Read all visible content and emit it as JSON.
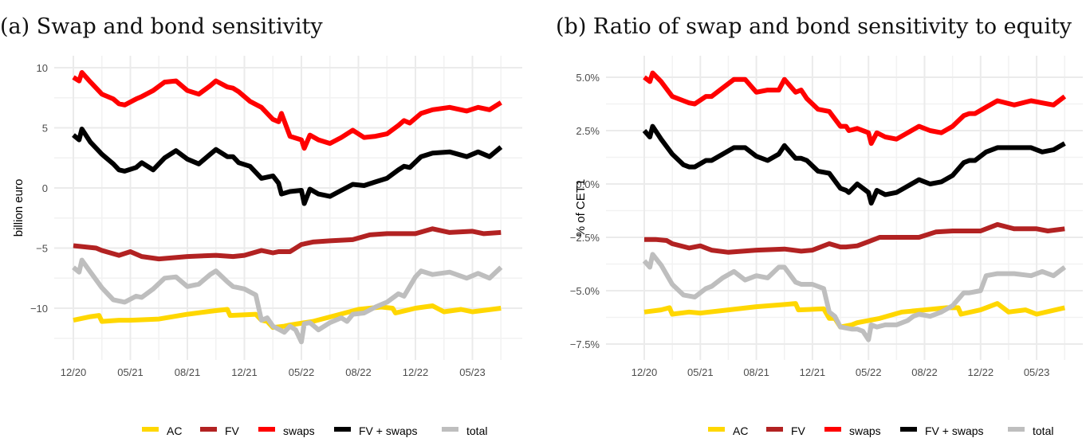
{
  "chart_data": [
    {
      "type": "line",
      "title": "(a) Swap and bond sensitivity",
      "xlabel": "",
      "ylabel": "billion euro",
      "x_tick_labels": [
        "12/20",
        "05/21",
        "08/21",
        "12/21",
        "05/22",
        "08/22",
        "12/22",
        "05/23"
      ],
      "y_ticks": [
        10,
        5,
        0,
        -5,
        -10
      ],
      "y_tick_labels": [
        "10",
        "5",
        "0",
        "−5",
        "−10"
      ],
      "ylim": [
        -12.8,
        10.5
      ],
      "xlim_ticks": [
        0,
        7.5
      ],
      "grid": true,
      "legend_position": "bottom",
      "series": [
        {
          "name": "AC",
          "color": "#FFD700",
          "x": [
            0,
            0.3,
            0.45,
            0.5,
            0.8,
            1.0,
            1.5,
            2.0,
            2.5,
            2.7,
            2.75,
            3.2,
            3.3,
            3.4,
            3.5,
            3.7,
            3.8,
            4.2,
            4.6,
            5.0,
            5.4,
            5.6,
            5.65,
            6.0,
            6.3,
            6.5,
            6.8,
            7.0,
            7.5
          ],
          "values": [
            -11.0,
            -10.7,
            -10.6,
            -11.1,
            -11.0,
            -11.0,
            -10.9,
            -10.5,
            -10.2,
            -10.1,
            -10.6,
            -10.5,
            -11.0,
            -11.1,
            -11.6,
            -11.5,
            -11.4,
            -11.1,
            -10.6,
            -10.1,
            -9.9,
            -10.0,
            -10.4,
            -10.0,
            -9.8,
            -10.3,
            -10.1,
            -10.3,
            -10.0
          ]
        },
        {
          "name": "FV",
          "color": "#B22222",
          "x": [
            0,
            0.2,
            0.4,
            0.5,
            0.8,
            1.0,
            1.2,
            1.5,
            2.0,
            2.5,
            2.8,
            3.0,
            3.3,
            3.5,
            3.6,
            3.8,
            4.0,
            4.2,
            4.5,
            4.9,
            5.2,
            5.5,
            6.0,
            6.3,
            6.6,
            7.0,
            7.2,
            7.5
          ],
          "values": [
            -4.8,
            -4.9,
            -5.0,
            -5.2,
            -5.6,
            -5.3,
            -5.7,
            -5.9,
            -5.7,
            -5.6,
            -5.7,
            -5.6,
            -5.2,
            -5.4,
            -5.3,
            -5.3,
            -4.7,
            -4.5,
            -4.4,
            -4.3,
            -3.9,
            -3.8,
            -3.8,
            -3.4,
            -3.7,
            -3.6,
            -3.8,
            -3.7
          ]
        },
        {
          "name": "swaps",
          "color": "#FF0000",
          "x": [
            0,
            0.1,
            0.15,
            0.3,
            0.5,
            0.7,
            0.8,
            0.9,
            1.1,
            1.2,
            1.4,
            1.6,
            1.8,
            2.0,
            2.2,
            2.4,
            2.5,
            2.7,
            2.8,
            2.9,
            3.1,
            3.3,
            3.5,
            3.6,
            3.65,
            3.8,
            4.0,
            4.05,
            4.15,
            4.3,
            4.5,
            4.7,
            4.9,
            5.1,
            5.3,
            5.5,
            5.7,
            5.8,
            5.9,
            6.1,
            6.3,
            6.6,
            6.9,
            7.1,
            7.3,
            7.5
          ],
          "values": [
            9.2,
            8.9,
            9.6,
            8.8,
            7.8,
            7.4,
            7.0,
            6.9,
            7.4,
            7.6,
            8.1,
            8.8,
            8.9,
            8.1,
            7.8,
            8.5,
            8.9,
            8.4,
            8.3,
            8.0,
            7.2,
            6.7,
            5.7,
            5.5,
            6.2,
            4.3,
            4.0,
            3.3,
            4.4,
            4.0,
            3.7,
            4.2,
            4.8,
            4.2,
            4.3,
            4.5,
            5.2,
            5.6,
            5.4,
            6.2,
            6.5,
            6.7,
            6.4,
            6.7,
            6.5,
            7.1
          ]
        },
        {
          "name": "FV + swaps",
          "color": "#000000",
          "x": [
            0,
            0.1,
            0.15,
            0.3,
            0.5,
            0.7,
            0.8,
            0.9,
            1.1,
            1.2,
            1.4,
            1.6,
            1.8,
            2.0,
            2.2,
            2.4,
            2.5,
            2.7,
            2.8,
            2.9,
            3.1,
            3.3,
            3.5,
            3.6,
            3.65,
            3.8,
            4.0,
            4.05,
            4.15,
            4.3,
            4.5,
            4.7,
            4.9,
            5.1,
            5.3,
            5.5,
            5.7,
            5.8,
            5.9,
            6.1,
            6.3,
            6.6,
            6.9,
            7.1,
            7.3,
            7.5
          ],
          "values": [
            4.4,
            4.0,
            4.9,
            3.8,
            2.8,
            2.0,
            1.5,
            1.4,
            1.7,
            2.1,
            1.5,
            2.5,
            3.1,
            2.4,
            2.0,
            2.8,
            3.2,
            2.6,
            2.6,
            2.1,
            1.8,
            0.8,
            1.0,
            0.4,
            -0.5,
            -0.3,
            -0.2,
            -1.3,
            -0.1,
            -0.5,
            -0.7,
            -0.2,
            0.3,
            0.2,
            0.5,
            0.8,
            1.5,
            1.8,
            1.7,
            2.6,
            2.9,
            3.0,
            2.6,
            3.0,
            2.6,
            3.4
          ]
        },
        {
          "name": "total",
          "color": "#BEBEBE",
          "x": [
            0,
            0.1,
            0.15,
            0.3,
            0.5,
            0.7,
            0.8,
            0.9,
            1.1,
            1.2,
            1.4,
            1.6,
            1.8,
            2.0,
            2.2,
            2.4,
            2.5,
            2.7,
            2.8,
            3.0,
            3.2,
            3.3,
            3.4,
            3.5,
            3.7,
            3.8,
            3.9,
            4.0,
            4.05,
            4.15,
            4.3,
            4.5,
            4.7,
            4.8,
            4.9,
            5.1,
            5.3,
            5.5,
            5.7,
            5.8,
            6.0,
            6.1,
            6.3,
            6.6,
            6.9,
            7.1,
            7.3,
            7.5
          ],
          "values": [
            -6.6,
            -7.0,
            -6.0,
            -7.0,
            -8.3,
            -9.3,
            -9.4,
            -9.5,
            -9.0,
            -9.1,
            -8.4,
            -7.5,
            -7.4,
            -8.2,
            -8.0,
            -7.2,
            -6.9,
            -7.8,
            -8.2,
            -8.4,
            -8.9,
            -11.0,
            -10.8,
            -11.5,
            -12.0,
            -11.5,
            -11.8,
            -12.8,
            -11.3,
            -11.2,
            -11.8,
            -11.2,
            -10.8,
            -11.1,
            -10.5,
            -10.4,
            -9.9,
            -9.5,
            -8.8,
            -9.0,
            -7.4,
            -6.9,
            -7.2,
            -7.0,
            -7.5,
            -7.1,
            -7.5,
            -6.6
          ]
        }
      ]
    },
    {
      "type": "line",
      "title": "(b) Ratio of swap and bond sensitivity to equity",
      "xlabel": "",
      "ylabel": "% of CET1",
      "x_tick_labels": [
        "12/20",
        "05/21",
        "08/21",
        "12/21",
        "05/22",
        "08/22",
        "12/22",
        "05/23"
      ],
      "y_ticks": [
        5.0,
        2.5,
        0.0,
        -2.5,
        -5.0,
        -7.5
      ],
      "y_tick_labels": [
        "5.0%",
        "2.5%",
        "0.0%",
        "−2.5%",
        "−5.0%",
        "−7.5%"
      ],
      "ylim": [
        -7.6,
        5.5
      ],
      "xlim_ticks": [
        0,
        7.5
      ],
      "grid": true,
      "legend_position": "bottom",
      "series": [
        {
          "name": "AC",
          "color": "#FFD700",
          "x": [
            0,
            0.3,
            0.45,
            0.5,
            0.8,
            1.0,
            1.5,
            2.0,
            2.5,
            2.7,
            2.75,
            3.2,
            3.3,
            3.4,
            3.5,
            3.7,
            3.8,
            4.2,
            4.6,
            5.0,
            5.4,
            5.6,
            5.65,
            6.0,
            6.3,
            6.5,
            6.8,
            7.0,
            7.5
          ],
          "values": [
            -6.0,
            -5.9,
            -5.8,
            -6.1,
            -6.0,
            -6.05,
            -5.9,
            -5.75,
            -5.65,
            -5.6,
            -5.9,
            -5.85,
            -6.3,
            -6.3,
            -6.7,
            -6.6,
            -6.5,
            -6.3,
            -6.0,
            -5.9,
            -5.8,
            -5.8,
            -6.1,
            -5.9,
            -5.6,
            -6.0,
            -5.9,
            -6.1,
            -5.8
          ]
        },
        {
          "name": "FV",
          "color": "#B22222",
          "x": [
            0,
            0.2,
            0.4,
            0.5,
            0.8,
            1.0,
            1.2,
            1.5,
            2.0,
            2.5,
            2.8,
            3.0,
            3.3,
            3.5,
            3.6,
            3.8,
            4.0,
            4.2,
            4.5,
            4.9,
            5.2,
            5.5,
            6.0,
            6.3,
            6.6,
            7.0,
            7.2,
            7.5
          ],
          "values": [
            -2.6,
            -2.6,
            -2.65,
            -2.8,
            -3.0,
            -2.9,
            -3.1,
            -3.2,
            -3.1,
            -3.05,
            -3.15,
            -3.1,
            -2.8,
            -2.95,
            -2.95,
            -2.9,
            -2.7,
            -2.5,
            -2.5,
            -2.5,
            -2.25,
            -2.2,
            -2.2,
            -1.9,
            -2.1,
            -2.1,
            -2.2,
            -2.1
          ]
        },
        {
          "name": "swaps",
          "color": "#FF0000",
          "x": [
            0,
            0.1,
            0.15,
            0.3,
            0.5,
            0.7,
            0.8,
            0.9,
            1.1,
            1.2,
            1.4,
            1.6,
            1.8,
            2.0,
            2.2,
            2.4,
            2.5,
            2.7,
            2.8,
            2.9,
            3.1,
            3.3,
            3.5,
            3.6,
            3.65,
            3.8,
            4.0,
            4.05,
            4.15,
            4.3,
            4.5,
            4.7,
            4.9,
            5.1,
            5.3,
            5.5,
            5.7,
            5.8,
            5.9,
            6.1,
            6.3,
            6.6,
            6.9,
            7.1,
            7.3,
            7.5
          ],
          "values": [
            5.0,
            4.8,
            5.2,
            4.8,
            4.1,
            3.9,
            3.8,
            3.75,
            4.1,
            4.1,
            4.5,
            4.9,
            4.9,
            4.3,
            4.4,
            4.4,
            4.9,
            4.3,
            4.4,
            4.0,
            3.5,
            3.4,
            2.7,
            2.7,
            2.5,
            2.6,
            2.4,
            1.9,
            2.4,
            2.2,
            2.1,
            2.4,
            2.7,
            2.5,
            2.4,
            2.7,
            3.2,
            3.3,
            3.3,
            3.6,
            3.9,
            3.7,
            3.9,
            3.8,
            3.7,
            4.1
          ]
        },
        {
          "name": "FV + swaps",
          "color": "#000000",
          "x": [
            0,
            0.1,
            0.15,
            0.3,
            0.5,
            0.7,
            0.8,
            0.9,
            1.1,
            1.2,
            1.4,
            1.6,
            1.8,
            2.0,
            2.2,
            2.4,
            2.5,
            2.7,
            2.8,
            2.9,
            3.1,
            3.3,
            3.5,
            3.6,
            3.65,
            3.8,
            4.0,
            4.05,
            4.15,
            4.3,
            4.5,
            4.7,
            4.9,
            5.1,
            5.3,
            5.5,
            5.7,
            5.8,
            5.9,
            6.1,
            6.3,
            6.6,
            6.9,
            7.1,
            7.3,
            7.5
          ],
          "values": [
            2.5,
            2.2,
            2.7,
            2.1,
            1.4,
            0.9,
            0.8,
            0.8,
            1.1,
            1.1,
            1.4,
            1.7,
            1.7,
            1.3,
            1.1,
            1.4,
            1.8,
            1.2,
            1.2,
            1.1,
            0.6,
            0.5,
            -0.2,
            -0.3,
            -0.4,
            0.0,
            -0.4,
            -0.9,
            -0.3,
            -0.5,
            -0.4,
            -0.1,
            0.2,
            0.0,
            0.1,
            0.4,
            1.0,
            1.1,
            1.1,
            1.5,
            1.7,
            1.7,
            1.7,
            1.5,
            1.6,
            1.9
          ]
        },
        {
          "name": "total",
          "color": "#BEBEBE",
          "x": [
            0,
            0.1,
            0.15,
            0.3,
            0.5,
            0.7,
            0.8,
            0.9,
            1.1,
            1.2,
            1.4,
            1.6,
            1.8,
            2.0,
            2.2,
            2.4,
            2.5,
            2.7,
            2.8,
            3.0,
            3.2,
            3.3,
            3.4,
            3.5,
            3.7,
            3.8,
            3.9,
            4.0,
            4.05,
            4.15,
            4.3,
            4.5,
            4.7,
            4.8,
            4.9,
            5.1,
            5.3,
            5.5,
            5.7,
            5.8,
            6.0,
            6.1,
            6.3,
            6.6,
            6.9,
            7.1,
            7.3,
            7.5
          ],
          "values": [
            -3.6,
            -3.9,
            -3.3,
            -3.8,
            -4.7,
            -5.2,
            -5.25,
            -5.3,
            -4.9,
            -4.8,
            -4.4,
            -4.1,
            -4.5,
            -4.3,
            -4.4,
            -3.9,
            -3.9,
            -4.6,
            -4.7,
            -4.7,
            -4.9,
            -6.0,
            -6.2,
            -6.7,
            -6.8,
            -6.8,
            -6.9,
            -7.3,
            -6.6,
            -6.7,
            -6.6,
            -6.6,
            -6.4,
            -6.2,
            -6.1,
            -6.2,
            -6.0,
            -5.7,
            -5.1,
            -5.1,
            -5.0,
            -4.3,
            -4.2,
            -4.2,
            -4.3,
            -4.1,
            -4.3,
            -3.9
          ]
        }
      ]
    }
  ],
  "legend": {
    "items": [
      {
        "label": "AC",
        "color": "#FFD700"
      },
      {
        "label": "FV",
        "color": "#B22222"
      },
      {
        "label": "swaps",
        "color": "#FF0000"
      },
      {
        "label": "FV + swaps",
        "color": "#000000"
      },
      {
        "label": "total",
        "color": "#BEBEBE"
      }
    ]
  }
}
